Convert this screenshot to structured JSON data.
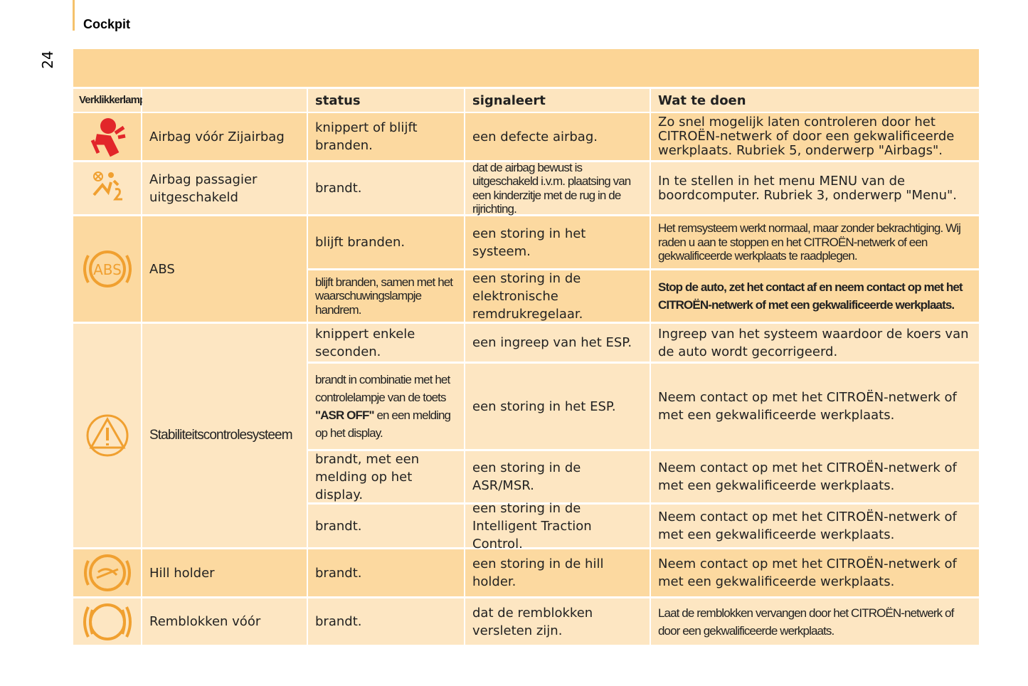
{
  "header": {
    "title": "Cockpit",
    "page_number": "24"
  },
  "table": {
    "columns": {
      "lamp": "Verklikkerlampje",
      "status": "status",
      "signal": "signaleert",
      "action": "Wat te doen"
    },
    "rows": [
      {
        "name": "Airbag vóór Zijairbag",
        "cases": [
          {
            "status": "knippert of blijft branden.",
            "signal": "een defecte airbag.",
            "action": "Zo snel mogelijk laten controleren door het CITROËN-netwerk of door een gekwalificeerde werkplaats. Rubriek 5, onderwerp \"Airbags\"."
          }
        ]
      },
      {
        "name": "Airbag passagier uitgeschakeld",
        "cases": [
          {
            "status": "brandt.",
            "signal": "dat de airbag bewust is uitgeschakeld i.v.m. plaatsing van een kinderzitje met de rug in de rijrichting.",
            "action": "In te stellen in het menu MENU van de boordcomputer. Rubriek 3, onderwerp \"Menu\"."
          }
        ]
      },
      {
        "name": "ABS",
        "icon_text": "ABS",
        "cases": [
          {
            "status": "blijft branden.",
            "signal": "een storing in het systeem.",
            "action": "Het remsysteem werkt normaal, maar zonder bekrachtiging. Wij raden u aan te stoppen en het CITROËN-netwerk of een gekwalificeerde werkplaats te raadplegen."
          },
          {
            "status": "blijft branden, samen met het waarschuwingslampje handrem.",
            "signal": "een storing in de elektronische remdrukregelaar.",
            "action": "Stop de auto, zet het contact af en neem contact op met het CITROËN-netwerk of met een gekwalificeerde werkplaats."
          }
        ]
      },
      {
        "name": "Stabiliteitscontrolesysteem",
        "cases": [
          {
            "status": "knippert enkele seconden.",
            "signal": "een ingreep van het ESP.",
            "action": "Ingreep van het systeem waardoor de koers van de auto wordt gecorrigeerd."
          },
          {
            "status_parts": [
              "brandt in combinatie met het controlelampje van de toets ",
              "\"ASR OFF\"",
              " en een melding op het display."
            ],
            "signal": "een storing in het ESP.",
            "action": "Neem contact op met het CITROËN-netwerk of met een gekwalificeerde werkplaats."
          },
          {
            "status": "brandt, met een melding op het display.",
            "signal": "een storing in de ASR/MSR.",
            "action": "Neem contact op met het CITROËN-netwerk of met een gekwalificeerde werkplaats."
          },
          {
            "status": "brandt.",
            "signal": "een storing in de Intelligent Traction Control.",
            "action": "Neem contact op met het CITROËN-netwerk of met een gekwalificeerde werkplaats."
          }
        ]
      },
      {
        "name": "Hill holder",
        "cases": [
          {
            "status": "brandt.",
            "signal": "een storing in de hill holder.",
            "action": "Neem contact op met het CITROËN-netwerk of met een gekwalificeerde werkplaats."
          }
        ]
      },
      {
        "name": "Remblokken vóór",
        "cases": [
          {
            "status": "brandt.",
            "signal": "dat de remblokken versleten zijn.",
            "action": "Laat de remblokken vervangen door het CITROËN-netwerk of door een gekwalificeerde werkplaats."
          }
        ]
      }
    ]
  }
}
